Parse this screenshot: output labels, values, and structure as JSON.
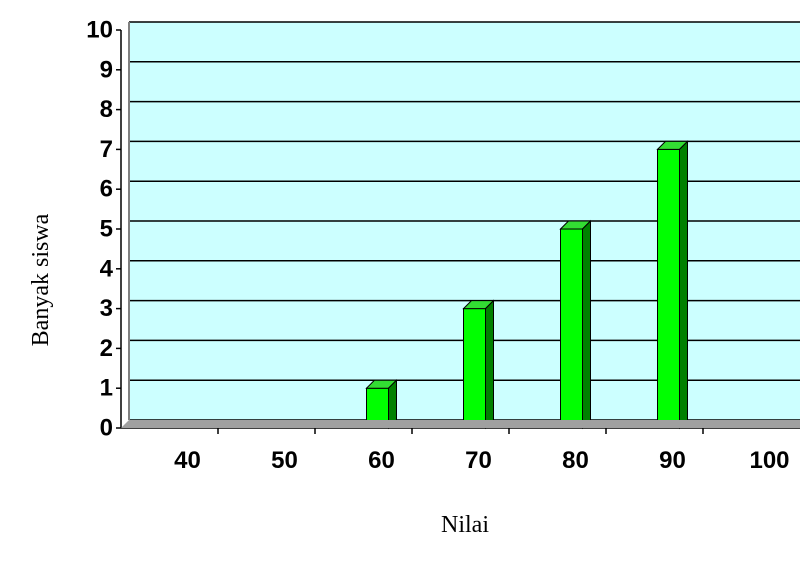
{
  "chart_data": {
    "type": "bar",
    "title": "",
    "xlabel": "Nilai",
    "ylabel": "Banyak siswa",
    "categories": [
      "40",
      "50",
      "60",
      "70",
      "80",
      "90",
      "100"
    ],
    "values": [
      0,
      0,
      1,
      3,
      5,
      7,
      0
    ],
    "ylim": [
      0,
      10
    ],
    "yticks": [
      "0",
      "1",
      "2",
      "3",
      "4",
      "5",
      "6",
      "7",
      "8",
      "9",
      "10"
    ],
    "grid": true,
    "legend": "none",
    "style": "3d-column"
  },
  "colors": {
    "plot_background": "#ccffff",
    "bar_front": "#00ff00",
    "bar_top": "#33dd33",
    "bar_side": "#008000",
    "gridline": "#000000"
  }
}
